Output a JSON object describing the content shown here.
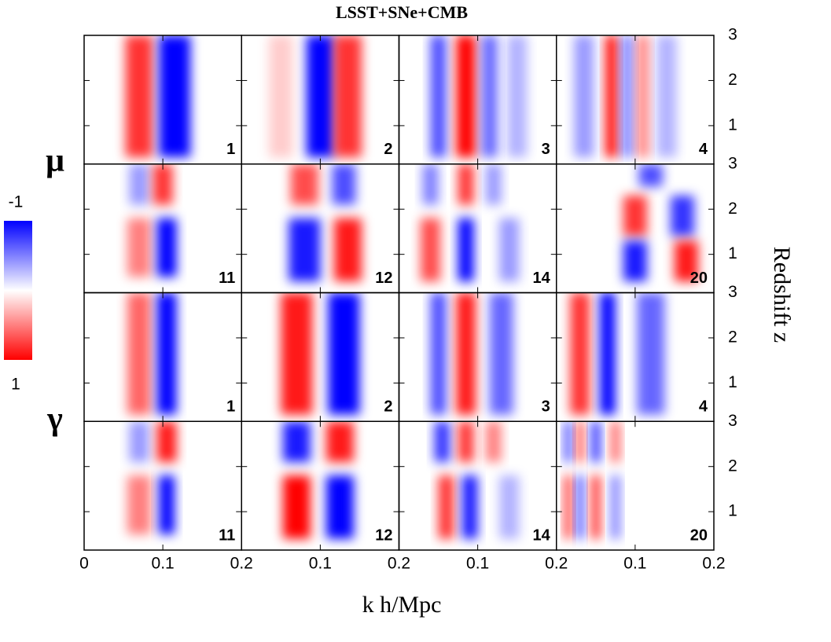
{
  "chart_data": {
    "type": "heatmap",
    "title": "LSST+SNe+CMB",
    "xlabel": "k h/Mpc",
    "ylabel": "Redshift z",
    "row_labels": [
      "μ",
      "γ"
    ],
    "colorbar_ticks": [
      -1,
      1
    ],
    "colors": {
      "negative": "#0000ff",
      "positive": "#ff0000"
    },
    "xlim": [
      0,
      0.2
    ],
    "ylim": [
      0.15,
      3
    ],
    "xticks": [
      0,
      0.1,
      0.2
    ],
    "yticks": [
      1,
      2,
      3
    ],
    "panels": [
      {
        "label": "1",
        "blobs": [
          {
            "k": 0.07,
            "w": 0.035,
            "z": [
              0.3,
              3
            ],
            "v": 0.8
          },
          {
            "k": 0.115,
            "w": 0.04,
            "z": [
              0.3,
              3
            ],
            "v": -1
          }
        ]
      },
      {
        "label": "2",
        "blobs": [
          {
            "k": 0.05,
            "w": 0.03,
            "z": [
              0.3,
              3
            ],
            "v": 0.2
          },
          {
            "k": 0.1,
            "w": 0.035,
            "z": [
              0.3,
              3
            ],
            "v": -1
          },
          {
            "k": 0.135,
            "w": 0.035,
            "z": [
              0.3,
              3
            ],
            "v": 0.8
          }
        ]
      },
      {
        "label": "3",
        "blobs": [
          {
            "k": 0.05,
            "w": 0.02,
            "z": [
              0.3,
              3
            ],
            "v": -0.7
          },
          {
            "k": 0.085,
            "w": 0.025,
            "z": [
              0.3,
              3
            ],
            "v": 1
          },
          {
            "k": 0.115,
            "w": 0.02,
            "z": [
              0.3,
              3
            ],
            "v": -0.6
          },
          {
            "k": 0.15,
            "w": 0.025,
            "z": [
              0.3,
              3
            ],
            "v": -0.3
          }
        ]
      },
      {
        "label": "4",
        "blobs": [
          {
            "k": 0.035,
            "w": 0.025,
            "z": [
              0.3,
              3
            ],
            "v": -0.4
          },
          {
            "k": 0.07,
            "w": 0.015,
            "z": [
              0.3,
              3
            ],
            "v": 1
          },
          {
            "k": 0.09,
            "w": 0.015,
            "z": [
              0.3,
              3
            ],
            "v": -0.5
          },
          {
            "k": 0.11,
            "w": 0.015,
            "z": [
              0.3,
              3
            ],
            "v": 0.5
          },
          {
            "k": 0.14,
            "w": 0.025,
            "z": [
              0.3,
              3
            ],
            "v": -0.3
          }
        ]
      },
      {
        "label": "11",
        "blobs": [
          {
            "k": 0.07,
            "w": 0.025,
            "z": [
              2.1,
              3
            ],
            "v": -0.4
          },
          {
            "k": 0.1,
            "w": 0.025,
            "z": [
              2.1,
              3
            ],
            "v": 0.8
          },
          {
            "k": 0.07,
            "w": 0.03,
            "z": [
              0.5,
              1.8
            ],
            "v": 0.5
          },
          {
            "k": 0.105,
            "w": 0.025,
            "z": [
              0.5,
              1.8
            ],
            "v": -1
          }
        ]
      },
      {
        "label": "12",
        "blobs": [
          {
            "k": 0.08,
            "w": 0.035,
            "z": [
              2.1,
              3
            ],
            "v": 0.7
          },
          {
            "k": 0.13,
            "w": 0.03,
            "z": [
              2.1,
              3
            ],
            "v": -0.7
          },
          {
            "k": 0.08,
            "w": 0.04,
            "z": [
              0.4,
              1.8
            ],
            "v": -0.9
          },
          {
            "k": 0.135,
            "w": 0.035,
            "z": [
              0.4,
              1.8
            ],
            "v": 0.9
          }
        ]
      },
      {
        "label": "14",
        "blobs": [
          {
            "k": 0.04,
            "w": 0.02,
            "z": [
              2.1,
              3
            ],
            "v": -0.5
          },
          {
            "k": 0.085,
            "w": 0.02,
            "z": [
              2.1,
              3
            ],
            "v": 0.8
          },
          {
            "k": 0.12,
            "w": 0.02,
            "z": [
              2.1,
              3
            ],
            "v": -0.4
          },
          {
            "k": 0.04,
            "w": 0.025,
            "z": [
              0.4,
              1.8
            ],
            "v": 0.7
          },
          {
            "k": 0.085,
            "w": 0.02,
            "z": [
              0.4,
              1.8
            ],
            "v": -1
          },
          {
            "k": 0.14,
            "w": 0.025,
            "z": [
              0.4,
              1.8
            ],
            "v": -0.4
          }
        ]
      },
      {
        "label": "20",
        "blobs": [
          {
            "k": 0.12,
            "w": 0.03,
            "z": [
              2.5,
              3
            ],
            "v": -0.7
          },
          {
            "k": 0.1,
            "w": 0.03,
            "z": [
              1.4,
              2.3
            ],
            "v": 0.8
          },
          {
            "k": 0.16,
            "w": 0.03,
            "z": [
              1.4,
              2.3
            ],
            "v": -0.8
          },
          {
            "k": 0.1,
            "w": 0.03,
            "z": [
              0.4,
              1.3
            ],
            "v": -0.9
          },
          {
            "k": 0.165,
            "w": 0.03,
            "z": [
              0.4,
              1.3
            ],
            "v": 0.9
          }
        ]
      },
      {
        "label": "1",
        "blobs": [
          {
            "k": 0.07,
            "w": 0.03,
            "z": [
              0.3,
              3
            ],
            "v": 0.6
          },
          {
            "k": 0.105,
            "w": 0.025,
            "z": [
              0.3,
              3
            ],
            "v": -1
          }
        ]
      },
      {
        "label": "2",
        "blobs": [
          {
            "k": 0.07,
            "w": 0.04,
            "z": [
              0.3,
              3
            ],
            "v": 0.9
          },
          {
            "k": 0.13,
            "w": 0.04,
            "z": [
              0.3,
              3
            ],
            "v": -1
          }
        ]
      },
      {
        "label": "3",
        "blobs": [
          {
            "k": 0.05,
            "w": 0.02,
            "z": [
              0.3,
              3
            ],
            "v": -0.7
          },
          {
            "k": 0.085,
            "w": 0.025,
            "z": [
              0.3,
              3
            ],
            "v": 0.9
          },
          {
            "k": 0.13,
            "w": 0.03,
            "z": [
              0.3,
              3
            ],
            "v": -0.6
          }
        ]
      },
      {
        "label": "4",
        "blobs": [
          {
            "k": 0.03,
            "w": 0.025,
            "z": [
              0.3,
              3
            ],
            "v": 0.8
          },
          {
            "k": 0.065,
            "w": 0.02,
            "z": [
              0.3,
              3
            ],
            "v": -1
          },
          {
            "k": 0.12,
            "w": 0.035,
            "z": [
              0.3,
              3
            ],
            "v": -0.6
          }
        ]
      },
      {
        "label": "11",
        "blobs": [
          {
            "k": 0.07,
            "w": 0.025,
            "z": [
              2.1,
              3
            ],
            "v": -0.4
          },
          {
            "k": 0.105,
            "w": 0.025,
            "z": [
              2.1,
              3
            ],
            "v": 0.9
          },
          {
            "k": 0.07,
            "w": 0.03,
            "z": [
              0.5,
              1.8
            ],
            "v": 0.5
          },
          {
            "k": 0.105,
            "w": 0.02,
            "z": [
              0.5,
              1.8
            ],
            "v": -1
          }
        ]
      },
      {
        "label": "12",
        "blobs": [
          {
            "k": 0.07,
            "w": 0.035,
            "z": [
              2.1,
              3
            ],
            "v": -0.9
          },
          {
            "k": 0.125,
            "w": 0.035,
            "z": [
              2.1,
              3
            ],
            "v": 0.9
          },
          {
            "k": 0.07,
            "w": 0.035,
            "z": [
              0.4,
              1.8
            ],
            "v": 1
          },
          {
            "k": 0.125,
            "w": 0.035,
            "z": [
              0.4,
              1.8
            ],
            "v": -1
          }
        ]
      },
      {
        "label": "14",
        "blobs": [
          {
            "k": 0.055,
            "w": 0.02,
            "z": [
              2.1,
              3
            ],
            "v": -0.8
          },
          {
            "k": 0.085,
            "w": 0.02,
            "z": [
              2.1,
              3
            ],
            "v": 0.8
          },
          {
            "k": 0.12,
            "w": 0.02,
            "z": [
              2.1,
              3
            ],
            "v": 0.5
          },
          {
            "k": 0.06,
            "w": 0.02,
            "z": [
              0.4,
              1.8
            ],
            "v": 0.8
          },
          {
            "k": 0.09,
            "w": 0.02,
            "z": [
              0.4,
              1.8
            ],
            "v": -0.9
          },
          {
            "k": 0.14,
            "w": 0.025,
            "z": [
              0.4,
              1.8
            ],
            "v": -0.3
          }
        ]
      },
      {
        "label": "20",
        "blobs": [
          {
            "k": 0.015,
            "w": 0.01,
            "z": [
              2.1,
              3
            ],
            "v": -0.7
          },
          {
            "k": 0.03,
            "w": 0.01,
            "z": [
              2.1,
              3
            ],
            "v": 0.7
          },
          {
            "k": 0.05,
            "w": 0.012,
            "z": [
              2.1,
              3
            ],
            "v": -0.8
          },
          {
            "k": 0.075,
            "w": 0.012,
            "z": [
              2.1,
              3
            ],
            "v": 0.6
          },
          {
            "k": 0.015,
            "w": 0.01,
            "z": [
              0.4,
              1.8
            ],
            "v": 0.8
          },
          {
            "k": 0.03,
            "w": 0.01,
            "z": [
              0.4,
              1.8
            ],
            "v": -0.7
          },
          {
            "k": 0.05,
            "w": 0.012,
            "z": [
              0.4,
              1.8
            ],
            "v": 0.8
          },
          {
            "k": 0.075,
            "w": 0.012,
            "z": [
              0.4,
              1.8
            ],
            "v": -0.5
          }
        ]
      }
    ]
  }
}
